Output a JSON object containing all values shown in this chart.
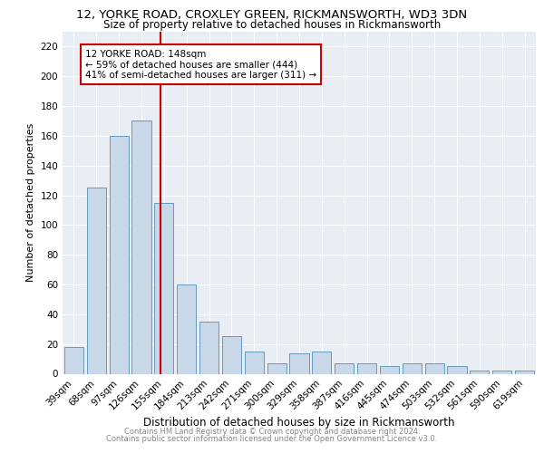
{
  "title1": "12, YORKE ROAD, CROXLEY GREEN, RICKMANSWORTH, WD3 3DN",
  "title2": "Size of property relative to detached houses in Rickmansworth",
  "xlabel": "Distribution of detached houses by size in Rickmansworth",
  "ylabel": "Number of detached properties",
  "footnote1": "Contains HM Land Registry data © Crown copyright and database right 2024.",
  "footnote2": "Contains public sector information licensed under the Open Government Licence v3.0.",
  "bar_labels": [
    "39sqm",
    "68sqm",
    "97sqm",
    "126sqm",
    "155sqm",
    "184sqm",
    "213sqm",
    "242sqm",
    "271sqm",
    "300sqm",
    "329sqm",
    "358sqm",
    "387sqm",
    "416sqm",
    "445sqm",
    "474sqm",
    "503sqm",
    "532sqm",
    "561sqm",
    "590sqm",
    "619sqm"
  ],
  "bar_values": [
    18,
    125,
    160,
    170,
    115,
    60,
    35,
    25,
    15,
    7,
    14,
    15,
    7,
    7,
    5,
    7,
    7,
    5,
    2,
    2,
    2
  ],
  "bar_color": "#c8d8e8",
  "bar_edgecolor": "#6699bb",
  "vline_color": "#cc0000",
  "vline_position": 3.85,
  "annotation_text": "12 YORKE ROAD: 148sqm\n← 59% of detached houses are smaller (444)\n41% of semi-detached houses are larger (311) →",
  "annotation_box_color": "#ffffff",
  "annotation_box_edgecolor": "#cc0000",
  "ylim": [
    0,
    230
  ],
  "yticks": [
    0,
    20,
    40,
    60,
    80,
    100,
    120,
    140,
    160,
    180,
    200,
    220
  ],
  "plot_bg": "#e8eef4",
  "title1_fontsize": 9.5,
  "title2_fontsize": 8.5,
  "xlabel_fontsize": 8.5,
  "ylabel_fontsize": 8,
  "tick_fontsize": 7.5,
  "annot_fontsize": 7.5,
  "footnote_fontsize": 6.0
}
